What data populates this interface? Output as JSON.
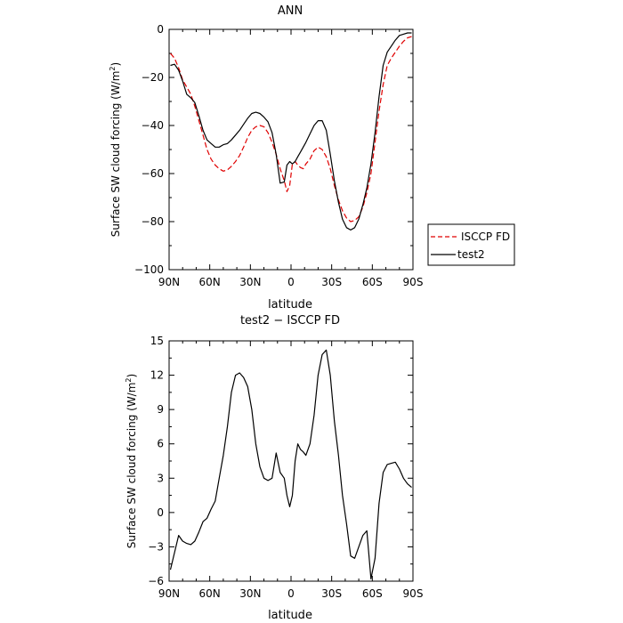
{
  "chart_data": [
    {
      "type": "line",
      "title": "ANN",
      "xlabel": "latitude",
      "ylabel": "Surface SW cloud forcing (W/m",
      "ylabel_sup": "2",
      "ylabel_close": ")",
      "xlim": [
        90,
        -90
      ],
      "ylim": [
        -100,
        0
      ],
      "xticks": [
        90,
        60,
        30,
        0,
        -30,
        -60,
        -90
      ],
      "xticklabels": [
        "90N",
        "60N",
        "30N",
        "0",
        "30S",
        "60S",
        "90S"
      ],
      "yticks": [
        0,
        -20,
        -40,
        -60,
        -80,
        -100
      ],
      "yticklabels": [
        "0",
        "−20",
        "−40",
        "−60",
        "−80",
        "−100"
      ],
      "legend": "outside-right",
      "series": [
        {
          "name": "ISCCP FD",
          "color": "#e00000",
          "dash": "dashed",
          "x": [
            89,
            86,
            83,
            80,
            77,
            74,
            71,
            68,
            65,
            62,
            59,
            56,
            53,
            50,
            47,
            44,
            41,
            38,
            35,
            32,
            29,
            26,
            23,
            20,
            17,
            14,
            11,
            8,
            5,
            3,
            1,
            -1,
            -3,
            -5,
            -7,
            -9,
            -11,
            -14,
            -17,
            -20,
            -23,
            -26,
            -29,
            -32,
            -35,
            -38,
            -41,
            -44,
            -47,
            -50,
            -53,
            -56,
            -59,
            -62,
            -65,
            -68,
            -71,
            -74,
            -77,
            -80,
            -83,
            -86,
            -89
          ],
          "y": [
            -10,
            -12,
            -16,
            -21,
            -24,
            -27,
            -32,
            -38,
            -44,
            -50,
            -54,
            -56.5,
            -58,
            -59,
            -58.5,
            -57,
            -55,
            -52.5,
            -49,
            -45,
            -42,
            -40.5,
            -40,
            -40.5,
            -43,
            -47,
            -52,
            -58,
            -63,
            -67.5,
            -65,
            -56,
            -55,
            -56.5,
            -57.5,
            -58,
            -56,
            -54,
            -50.5,
            -49,
            -50,
            -53,
            -58,
            -65,
            -71,
            -75.5,
            -78.5,
            -80,
            -79.5,
            -78,
            -74,
            -68,
            -60,
            -47,
            -34,
            -23,
            -15,
            -12,
            -9.5,
            -7,
            -5,
            -3.5,
            -3
          ]
        },
        {
          "name": "test2",
          "color": "#000000",
          "dash": "solid",
          "x": [
            89,
            86,
            83,
            80,
            77,
            74,
            71,
            68,
            65,
            62,
            59,
            56,
            53,
            50,
            47,
            44,
            41,
            38,
            35,
            32,
            29,
            26,
            23,
            20,
            17,
            14,
            11,
            8,
            5,
            3,
            1,
            -1,
            -3,
            -5,
            -7,
            -9,
            -11,
            -14,
            -17,
            -20,
            -23,
            -26,
            -29,
            -32,
            -35,
            -38,
            -41,
            -44,
            -47,
            -50,
            -53,
            -56,
            -59,
            -62,
            -65,
            -68,
            -71,
            -74,
            -77,
            -80,
            -83,
            -86,
            -89
          ],
          "y": [
            -15,
            -14.5,
            -17,
            -21.5,
            -27,
            -28.5,
            -30.5,
            -36,
            -42,
            -46,
            -47.5,
            -49,
            -49,
            -48,
            -47.5,
            -46,
            -44,
            -42,
            -39.5,
            -37,
            -35,
            -34.5,
            -35,
            -36.5,
            -38.5,
            -43,
            -52,
            -64,
            -63.5,
            -56.5,
            -55,
            -56,
            -55,
            -53,
            -51,
            -49,
            -47,
            -43.5,
            -40,
            -38,
            -38,
            -42,
            -52,
            -63,
            -72,
            -79,
            -82.5,
            -83.5,
            -82.5,
            -79,
            -73,
            -66,
            -56,
            -43,
            -28,
            -15,
            -9.5,
            -7,
            -4.5,
            -2.5,
            -2,
            -1.5,
            -1.5
          ]
        }
      ]
    },
    {
      "type": "line",
      "title": "test2 − ISCCP FD",
      "xlabel": "latitude",
      "ylabel": "Surface SW cloud forcing (W/m",
      "ylabel_sup": "2",
      "ylabel_close": ")",
      "xlim": [
        90,
        -90
      ],
      "ylim": [
        -6,
        15
      ],
      "xticks": [
        90,
        60,
        30,
        0,
        -30,
        -60,
        -90
      ],
      "xticklabels": [
        "90N",
        "60N",
        "30N",
        "0",
        "30S",
        "60S",
        "90S"
      ],
      "yticks": [
        15,
        12,
        9,
        6,
        3,
        0,
        -3,
        -6
      ],
      "yticklabels": [
        "15",
        "12",
        "9",
        "6",
        "3",
        "0",
        "−3",
        "−6"
      ],
      "series": [
        {
          "name": "",
          "color": "#000000",
          "dash": "solid",
          "x": [
            89,
            86,
            83,
            80,
            77,
            74,
            71,
            68,
            65,
            62,
            59,
            56,
            53,
            50,
            47,
            44,
            41,
            38,
            35,
            32,
            29,
            26,
            23,
            20,
            17,
            14,
            11,
            8,
            5,
            3,
            1,
            -1,
            -3,
            -5,
            -7,
            -9,
            -11,
            -14,
            -17,
            -20,
            -23,
            -26,
            -29,
            -32,
            -35,
            -38,
            -41,
            -44,
            -47,
            -50,
            -53,
            -56,
            -59,
            -62,
            -65,
            -68,
            -71,
            -74,
            -77,
            -80,
            -83,
            -86,
            -89
          ],
          "y": [
            -5,
            -3.5,
            -2,
            -2.5,
            -2.7,
            -2.8,
            -2.5,
            -1.7,
            -0.8,
            -0.5,
            0.3,
            1,
            3,
            5,
            7.5,
            10.5,
            12,
            12.2,
            11.8,
            11,
            9,
            6,
            4,
            3,
            2.8,
            3,
            5.2,
            3.5,
            3,
            1.5,
            0.5,
            1.5,
            4.5,
            6,
            5.5,
            5.3,
            5,
            6,
            8.5,
            12,
            13.8,
            14.2,
            12,
            8,
            5,
            1.5,
            -1,
            -3.8,
            -4,
            -3,
            -2,
            -1.6,
            -5.8,
            -4,
            0.8,
            3.5,
            4.2,
            4.3,
            4.4,
            3.8,
            3,
            2.5,
            2.2
          ]
        }
      ]
    }
  ]
}
